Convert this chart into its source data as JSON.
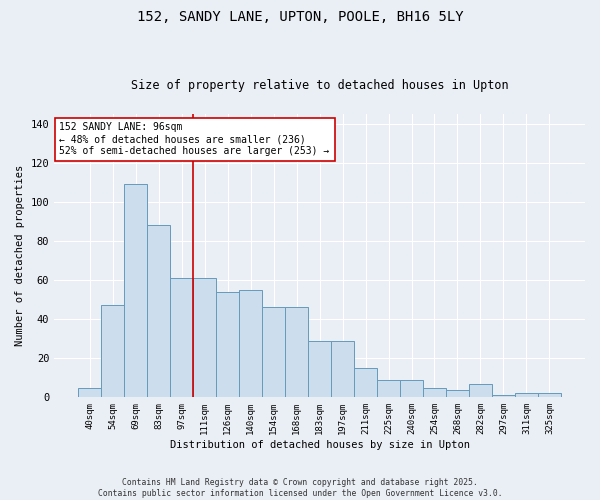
{
  "title": "152, SANDY LANE, UPTON, POOLE, BH16 5LY",
  "subtitle": "Size of property relative to detached houses in Upton",
  "xlabel": "Distribution of detached houses by size in Upton",
  "ylabel": "Number of detached properties",
  "categories": [
    "40sqm",
    "54sqm",
    "69sqm",
    "83sqm",
    "97sqm",
    "111sqm",
    "126sqm",
    "140sqm",
    "154sqm",
    "168sqm",
    "183sqm",
    "197sqm",
    "211sqm",
    "225sqm",
    "240sqm",
    "254sqm",
    "268sqm",
    "282sqm",
    "297sqm",
    "311sqm",
    "325sqm"
  ],
  "values": [
    5,
    47,
    109,
    88,
    61,
    61,
    54,
    55,
    46,
    46,
    29,
    29,
    15,
    9,
    9,
    5,
    4,
    7,
    1,
    2,
    2
  ],
  "bar_color": "#ccdded",
  "bar_edge_color": "#6699bb",
  "vline_x": 4.5,
  "vline_color": "#cc0000",
  "annotation_text": "152 SANDY LANE: 96sqm\n← 48% of detached houses are smaller (236)\n52% of semi-detached houses are larger (253) →",
  "annotation_box_color": "#ffffff",
  "annotation_box_edge": "#cc0000",
  "ylim": [
    0,
    145
  ],
  "yticks": [
    0,
    20,
    40,
    60,
    80,
    100,
    120,
    140
  ],
  "bg_color": "#eaeef5",
  "grid_color": "#ffffff",
  "footer": "Contains HM Land Registry data © Crown copyright and database right 2025.\nContains public sector information licensed under the Open Government Licence v3.0."
}
